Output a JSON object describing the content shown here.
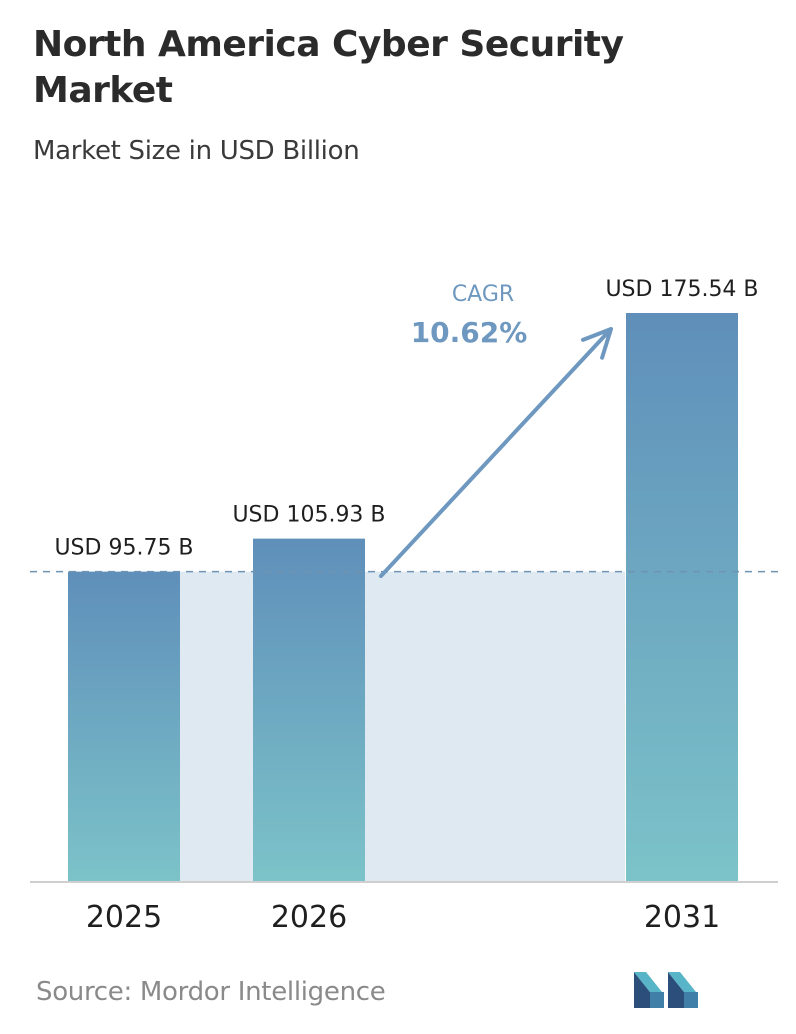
{
  "title": "North America Cyber Security Market",
  "subtitle": "Market Size in USD Billion",
  "source": "Source:  Mordor Intelligence",
  "colors": {
    "bar_top": "#5f8fba",
    "bar_bottom": "#7cc3c9",
    "band": "#dfe9f1",
    "dashed_line": "#6f93b3",
    "arrow": "#6e98bf",
    "cagr_text": "#6e98bf",
    "axis": "#cfcfcf",
    "label": "#1f1f1f"
  },
  "chart_data": {
    "type": "bar",
    "categories": [
      "2025",
      "2026",
      "2031"
    ],
    "values": [
      95.75,
      105.93,
      175.54
    ],
    "value_labels": [
      "USD 95.75 B",
      "USD 105.93 B",
      "USD 175.54 B"
    ],
    "title": "North America Cyber Security Market",
    "subtitle": "Market Size in USD Billion",
    "ylim": [
      0,
      175.54
    ],
    "grid": false,
    "baseline_reference": 95.75,
    "annotation": {
      "label": "CAGR",
      "value": "10.62%"
    }
  }
}
